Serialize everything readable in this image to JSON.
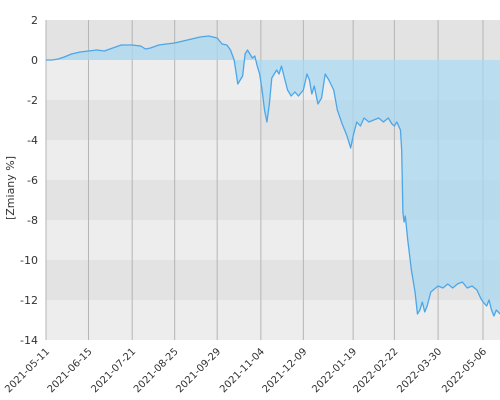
{
  "chart_data": {
    "type": "area",
    "ylabel": "[Zmiany %]",
    "ylim": [
      -14,
      2
    ],
    "y_ticks": [
      2,
      0,
      -2,
      -4,
      -6,
      -8,
      -10,
      -12,
      -14
    ],
    "x_ticks": [
      "2021-05-11",
      "2021-06-15",
      "2021-07-21",
      "2021-08-25",
      "2021-09-29",
      "2021-11-04",
      "2021-12-09",
      "2022-01-19",
      "2022-02-22",
      "2022-03-30",
      "2022-05-06"
    ],
    "xlim": [
      "2021-05-11",
      "2022-05-20"
    ],
    "grid": true,
    "band_colors": [
      "#e3e3e3",
      "#ededed"
    ],
    "line_color": "#4da6e8",
    "fill_color": "#a8d8ef",
    "series": [
      {
        "points": [
          [
            "2021-05-11",
            0.0
          ],
          [
            "2021-05-16",
            0.0
          ],
          [
            "2021-05-21",
            0.05
          ],
          [
            "2021-05-26",
            0.15
          ],
          [
            "2021-06-01",
            0.3
          ],
          [
            "2021-06-08",
            0.4
          ],
          [
            "2021-06-15",
            0.45
          ],
          [
            "2021-06-22",
            0.5
          ],
          [
            "2021-06-28",
            0.45
          ],
          [
            "2021-07-05",
            0.6
          ],
          [
            "2021-07-12",
            0.75
          ],
          [
            "2021-07-21",
            0.75
          ],
          [
            "2021-07-28",
            0.7
          ],
          [
            "2021-08-01",
            0.55
          ],
          [
            "2021-08-05",
            0.6
          ],
          [
            "2021-08-12",
            0.75
          ],
          [
            "2021-08-18",
            0.8
          ],
          [
            "2021-08-25",
            0.85
          ],
          [
            "2021-09-01",
            0.95
          ],
          [
            "2021-09-08",
            1.05
          ],
          [
            "2021-09-15",
            1.15
          ],
          [
            "2021-09-22",
            1.2
          ],
          [
            "2021-09-29",
            1.1
          ],
          [
            "2021-10-03",
            0.8
          ],
          [
            "2021-10-07",
            0.75
          ],
          [
            "2021-10-10",
            0.5
          ],
          [
            "2021-10-13",
            0.0
          ],
          [
            "2021-10-16",
            -1.2
          ],
          [
            "2021-10-18",
            -1.0
          ],
          [
            "2021-10-20",
            -0.8
          ],
          [
            "2021-10-22",
            0.3
          ],
          [
            "2021-10-24",
            0.5
          ],
          [
            "2021-10-26",
            0.3
          ],
          [
            "2021-10-28",
            0.1
          ],
          [
            "2021-10-30",
            0.2
          ],
          [
            "2021-11-01",
            -0.3
          ],
          [
            "2021-11-03",
            -0.7
          ],
          [
            "2021-11-05",
            -1.5
          ],
          [
            "2021-11-07",
            -2.5
          ],
          [
            "2021-11-09",
            -3.1
          ],
          [
            "2021-11-11",
            -2.2
          ],
          [
            "2021-11-13",
            -0.9
          ],
          [
            "2021-11-15",
            -0.7
          ],
          [
            "2021-11-17",
            -0.5
          ],
          [
            "2021-11-19",
            -0.7
          ],
          [
            "2021-11-21",
            -0.3
          ],
          [
            "2021-11-23",
            -0.8
          ],
          [
            "2021-11-26",
            -1.5
          ],
          [
            "2021-11-29",
            -1.8
          ],
          [
            "2021-12-02",
            -1.6
          ],
          [
            "2021-12-05",
            -1.8
          ],
          [
            "2021-12-09",
            -1.5
          ],
          [
            "2021-12-12",
            -0.7
          ],
          [
            "2021-12-14",
            -1.0
          ],
          [
            "2021-12-16",
            -1.7
          ],
          [
            "2021-12-18",
            -1.3
          ],
          [
            "2021-12-21",
            -2.2
          ],
          [
            "2021-12-24",
            -1.9
          ],
          [
            "2021-12-27",
            -0.7
          ],
          [
            "2021-12-30",
            -1.0
          ],
          [
            "2022-01-03",
            -1.5
          ],
          [
            "2022-01-06",
            -2.5
          ],
          [
            "2022-01-10",
            -3.2
          ],
          [
            "2022-01-14",
            -3.8
          ],
          [
            "2022-01-17",
            -4.4
          ],
          [
            "2022-01-19",
            -3.8
          ],
          [
            "2022-01-22",
            -3.1
          ],
          [
            "2022-01-25",
            -3.3
          ],
          [
            "2022-01-28",
            -2.9
          ],
          [
            "2022-02-01",
            -3.1
          ],
          [
            "2022-02-05",
            -3.0
          ],
          [
            "2022-02-09",
            -2.9
          ],
          [
            "2022-02-13",
            -3.1
          ],
          [
            "2022-02-17",
            -2.9
          ],
          [
            "2022-02-20",
            -3.2
          ],
          [
            "2022-02-22",
            -3.3
          ],
          [
            "2022-02-24",
            -3.1
          ],
          [
            "2022-02-27",
            -3.5
          ],
          [
            "2022-02-28",
            -4.5
          ],
          [
            "2022-03-01",
            -7.6
          ],
          [
            "2022-03-02",
            -8.1
          ],
          [
            "2022-03-03",
            -7.8
          ],
          [
            "2022-03-05",
            -9.0
          ],
          [
            "2022-03-08",
            -10.5
          ],
          [
            "2022-03-11",
            -11.6
          ],
          [
            "2022-03-13",
            -12.7
          ],
          [
            "2022-03-15",
            -12.5
          ],
          [
            "2022-03-17",
            -12.1
          ],
          [
            "2022-03-19",
            -12.6
          ],
          [
            "2022-03-21",
            -12.3
          ],
          [
            "2022-03-24",
            -11.6
          ],
          [
            "2022-03-28",
            -11.4
          ],
          [
            "2022-03-30",
            -11.3
          ],
          [
            "2022-04-03",
            -11.4
          ],
          [
            "2022-04-07",
            -11.2
          ],
          [
            "2022-04-11",
            -11.4
          ],
          [
            "2022-04-15",
            -11.2
          ],
          [
            "2022-04-19",
            -11.1
          ],
          [
            "2022-04-23",
            -11.4
          ],
          [
            "2022-04-27",
            -11.3
          ],
          [
            "2022-05-01",
            -11.5
          ],
          [
            "2022-05-04",
            -11.9
          ],
          [
            "2022-05-06",
            -12.1
          ],
          [
            "2022-05-09",
            -12.3
          ],
          [
            "2022-05-11",
            -12.0
          ],
          [
            "2022-05-13",
            -12.5
          ],
          [
            "2022-05-15",
            -12.8
          ],
          [
            "2022-05-17",
            -12.5
          ],
          [
            "2022-05-20",
            -12.7
          ]
        ]
      }
    ]
  }
}
